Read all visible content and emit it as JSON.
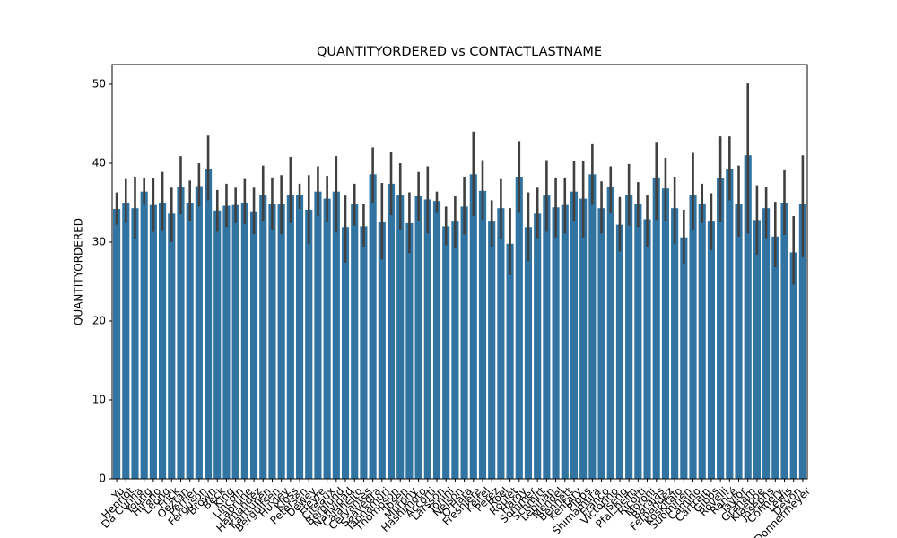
{
  "chart_data": {
    "type": "bar",
    "title": "QUANTITYORDERED vs CONTACTLASTNAME",
    "ylabel": "QUANTITYORDERED",
    "color": "#3274a1",
    "error_color": "#404040",
    "categories": [
      "Yu",
      "Henriot",
      "Da Cunha",
      "Young",
      "Hirano",
      "Leong",
      "Frick",
      "Oeztan",
      "Perrier",
      "Ferguson",
      "Brown",
      "Beck",
      "King",
      "Lincoln",
      "Labrune",
      "Hernandez",
      "Karttunen",
      "Bergulfsen",
      "Huxley",
      "Kloss",
      "Petersen",
      "Dewey",
      "Freyre",
      "Citeaux",
      "Berglund",
      "Natividad",
      "Calaheiro",
      "Cervantes",
      "Saavedra",
      "Tannamuri",
      "Thompson",
      "Ibsen",
      "Murphy",
      "Hashimoto",
      "Accorti",
      "Larsson",
      "Tonini",
      "Nelson",
      "O'Hara",
      "Fresnière",
      "Keitel",
      "Perez",
      "Roel",
      "Roulet",
      "Hardy",
      "Sommer",
      "Schmitt",
      "Lebihan",
      "Mendel",
      "Bennett",
      "Kentary",
      "Pipps",
      "Shimamura",
      "Franco",
      "Victorino",
      "Tseng",
      "Pfalzheim",
      "Ricotti",
      "Moroni",
      "Barajas",
      "Fernandez",
      "Koskitalo",
      "Suominen",
      "Camino",
      "Cartrain",
      "Gibbs",
      "Rovelli",
      "Rancé",
      "Taylor",
      "Graham",
      "Klaeboe",
      "Josephs",
      "Connery",
      "Lewis",
      "Devon",
      "Donnermeyer"
    ],
    "values": [
      34.2,
      35,
      34.3,
      36.4,
      34.7,
      35,
      33.6,
      37,
      35,
      37.1,
      39.2,
      34,
      34.6,
      34.7,
      35,
      33.9,
      36,
      34.8,
      34.8,
      36,
      36,
      34.1,
      36.4,
      35.5,
      36.4,
      31.9,
      34.8,
      32,
      38.6,
      32.5,
      37.4,
      35.9,
      32.4,
      35.8,
      35.4,
      35.2,
      32,
      32.6,
      34.5,
      38.6,
      36.5,
      32.6,
      34.3,
      29.8,
      38.3,
      31.9,
      33.6,
      35.9,
      34.4,
      34.7,
      36.4,
      35.5,
      38.6,
      34.3,
      37,
      32.2,
      36,
      34.8,
      32.9,
      38.2,
      36.8,
      34.3,
      30.6,
      36,
      34.9,
      32.6,
      38.1,
      39.3,
      34.8,
      41,
      32.8,
      34.3,
      30.7,
      35,
      28.7,
      34.8
    ],
    "ci_low": [
      32.2,
      32.4,
      30.4,
      34.7,
      31.3,
      31.4,
      30,
      33.5,
      32.7,
      34.5,
      35.3,
      31.3,
      31.9,
      32.4,
      32.3,
      31,
      32.6,
      31.6,
      31,
      32.4,
      34.2,
      29.8,
      33.3,
      32.5,
      31.2,
      27.4,
      32.1,
      29.4,
      35,
      27.8,
      33.4,
      31.6,
      28.6,
      32.7,
      31.1,
      33.8,
      29.6,
      29.2,
      31,
      33.3,
      32.8,
      29.4,
      30.4,
      25.8,
      33.8,
      27.6,
      30.5,
      31.3,
      30.6,
      31.1,
      32.6,
      30.6,
      34.7,
      31.1,
      33.7,
      28.8,
      32.1,
      31.9,
      29.4,
      32.8,
      32.7,
      29.8,
      27.3,
      31.5,
      32.4,
      29,
      32.5,
      35.3,
      30.7,
      31.1,
      28.4,
      30.5,
      26.8,
      30.9,
      24.6,
      28.1
    ],
    "ci_high": [
      36.3,
      38,
      38.3,
      38.1,
      38.1,
      38.9,
      36.9,
      40.9,
      37.8,
      40,
      43.5,
      36.6,
      37.4,
      36.9,
      38,
      36.9,
      39.7,
      38.2,
      38.5,
      40.8,
      37.4,
      38.5,
      39.6,
      38.4,
      40.9,
      35.9,
      37.4,
      34.8,
      42,
      37.5,
      41.4,
      40,
      36.3,
      38.9,
      39.6,
      36.4,
      34.5,
      35.8,
      38.3,
      44,
      40.4,
      35.3,
      38,
      34.3,
      42.8,
      36.3,
      36.9,
      40.4,
      38.2,
      38.2,
      40.3,
      40.3,
      42.4,
      37.7,
      39.6,
      35.7,
      39.9,
      37.6,
      35.9,
      42.7,
      40.7,
      38.3,
      34.1,
      41.3,
      37.4,
      36.2,
      43.4,
      43.4,
      39.7,
      50.1,
      37.2,
      37,
      35.1,
      39.1,
      33.3,
      41
    ],
    "ylim": [
      0,
      52.5
    ],
    "yticks": [
      0,
      10,
      20,
      30,
      40,
      50
    ]
  }
}
